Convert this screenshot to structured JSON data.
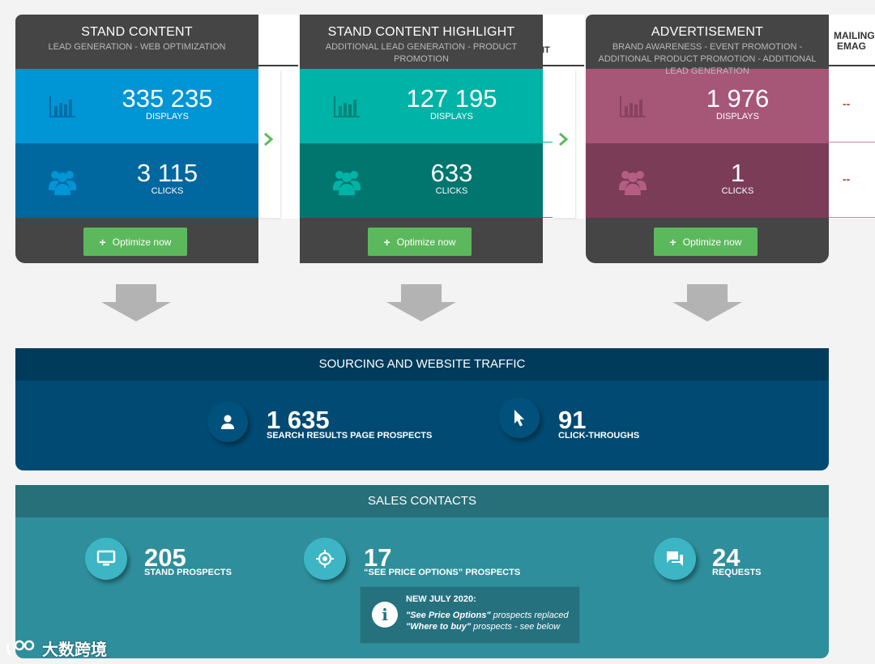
{
  "cards": [
    {
      "title": "STAND CONTENT",
      "subtitle": "LEAD GENERATION - WEB OPTIMIZATION",
      "displays_value": "335 235",
      "displays_label": "DISPLAYS",
      "clicks_value": "3 115",
      "clicks_label": "CLICKS",
      "button_label": "Optimize now",
      "colors": {
        "top": "#0095d5",
        "bottom": "#00679f",
        "icon_top": "#006ea6",
        "icon_bottom": "#0095d5"
      }
    },
    {
      "title": "STAND CONTENT HIGHLIGHT",
      "subtitle": "ADDITIONAL LEAD GENERATION - PRODUCT PROMOTION",
      "displays_value": "127 195",
      "displays_label": "DISPLAYS",
      "clicks_value": "633",
      "clicks_label": "CLICKS",
      "button_label": "Optimize now",
      "colors": {
        "top": "#00b3a7",
        "bottom": "#00766f",
        "icon_top": "#00857d",
        "icon_bottom": "#00b3a7"
      }
    },
    {
      "title": "ADVERTISEMENT",
      "subtitle": "BRAND AWARENESS - EVENT PROMOTION - ADDITIONAL PRODUCT PROMOTION - ADDITIONAL LEAD GENERATION",
      "displays_value": "1 976",
      "displays_label": "DISPLAYS",
      "clicks_value": "1",
      "clicks_label": "CLICKS",
      "button_label": "Optimize now",
      "colors": {
        "top": "#a65677",
        "bottom": "#7a3c57",
        "icon_top": "#8a4160",
        "icon_bottom": "#b35e82"
      }
    }
  ],
  "background_table": {
    "partial_header": "IT",
    "mailing_header": "MAILING EMAG",
    "mailing_values": [
      "--",
      "--"
    ]
  },
  "sourcing": {
    "title": "SOURCING AND WEBSITE TRAFFIC",
    "stats": [
      {
        "value": "1 635",
        "label": "SEARCH RESULTS PAGE PROSPECTS",
        "icon": "person-icon"
      },
      {
        "value": "91",
        "label": "CLICK-THROUGHS",
        "icon": "cursor-icon"
      }
    ],
    "colors": {
      "head": "#003b5c",
      "body": "#004a73",
      "circle": "#00527d"
    }
  },
  "sales": {
    "title": "SALES CONTACTS",
    "stats": [
      {
        "value": "205",
        "label": "STAND PROSPECTS",
        "icon": "monitor-icon"
      },
      {
        "value": "17",
        "label": "“SEE PRICE OPTIONS” PROSPECTS",
        "icon": "target-icon"
      },
      {
        "value": "24",
        "label": "REQUESTS",
        "icon": "chat-icon"
      }
    ],
    "info": {
      "title": "NEW JULY 2020:",
      "line1_bold": "\"See Price Options\"",
      "line1_rest": " prospects replaced",
      "line2_bold": "\"Where to buy\"",
      "line2_rest": " prospects - see below"
    },
    "colors": {
      "head": "#276f79",
      "body": "#2e8e9b",
      "circle": "#3db5c5"
    }
  },
  "watermark": "大数跨境"
}
